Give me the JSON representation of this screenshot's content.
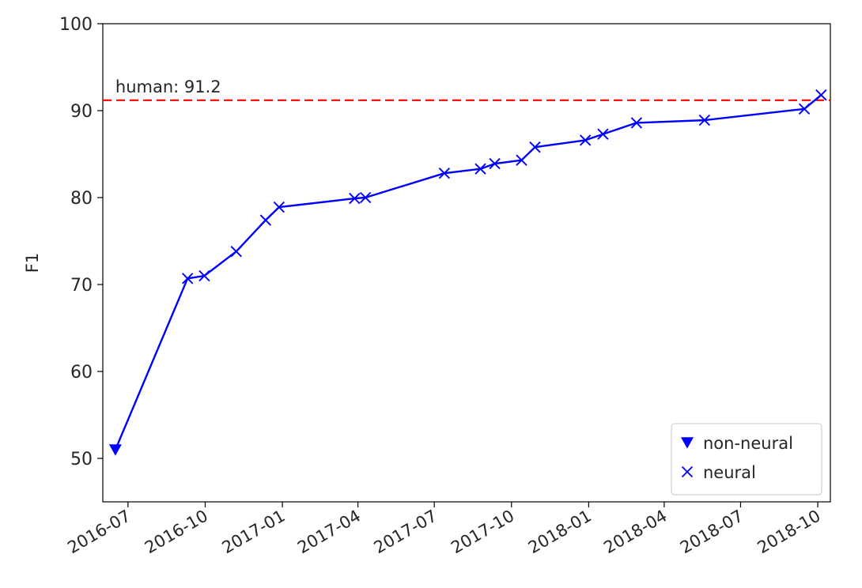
{
  "chart_data": {
    "type": "line",
    "ylabel": "F1",
    "ylim": [
      45,
      100
    ],
    "yticks": [
      50,
      60,
      70,
      80,
      90,
      100
    ],
    "ytick_labels": [
      "50",
      "60",
      "70",
      "80",
      "90",
      "100"
    ],
    "xlim": [
      "2016-06-01",
      "2018-10-16"
    ],
    "xticks": [
      "2016-07-01",
      "2016-10-01",
      "2017-01-01",
      "2017-04-01",
      "2017-07-01",
      "2017-10-01",
      "2018-01-01",
      "2018-04-01",
      "2018-07-01",
      "2018-10-01"
    ],
    "xtick_labels": [
      "2016-07",
      "2016-10",
      "2017-01",
      "2017-04",
      "2017-07",
      "2017-10",
      "2018-01",
      "2018-04",
      "2018-07",
      "2018-10"
    ],
    "grid": false,
    "legend_position": "lower-right",
    "reference_line": {
      "y": 91.2,
      "label": "human: 91.2",
      "color": "#ff0000",
      "style": "dashed"
    },
    "line_color": "#0000ff",
    "series": [
      {
        "name": "non-neural",
        "marker": "triangle-down",
        "x": [
          "2016-06-16"
        ],
        "y": [
          51.0
        ]
      },
      {
        "name": "neural",
        "marker": "x",
        "x": [
          "2016-09-10",
          "2016-09-30",
          "2016-11-07",
          "2016-12-12",
          "2016-12-28",
          "2017-03-28",
          "2017-04-10",
          "2017-07-13",
          "2017-08-25",
          "2017-09-11",
          "2017-10-13",
          "2017-10-29",
          "2017-12-28",
          "2018-01-18",
          "2018-02-27",
          "2018-05-19",
          "2018-09-15",
          "2018-10-05"
        ],
        "y": [
          70.7,
          71.0,
          73.8,
          77.4,
          78.9,
          79.9,
          80.0,
          82.8,
          83.3,
          83.9,
          84.3,
          85.8,
          86.6,
          87.3,
          88.6,
          88.9,
          90.2,
          91.8
        ]
      }
    ],
    "connected_line_order": [
      "non-neural",
      "neural"
    ]
  }
}
